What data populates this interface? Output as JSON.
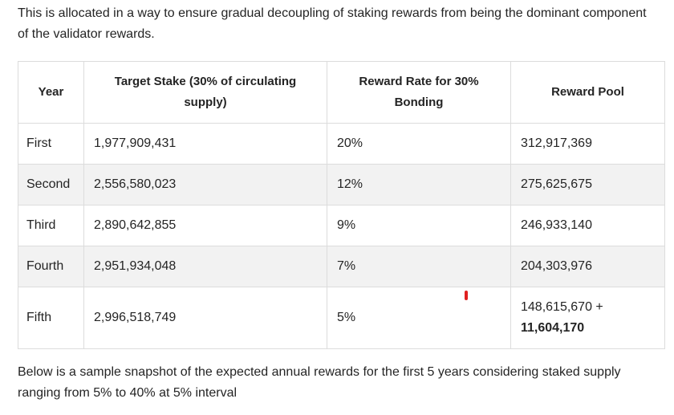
{
  "intro_text": "This is allocated in a way to ensure gradual decoupling of staking rewards from being the dominant component of the validator rewards.",
  "table": {
    "headers": {
      "year": "Year",
      "target_stake": "Target Stake (30% of circulating supply)",
      "reward_rate": "Reward Rate for 30% Bonding",
      "reward_pool": "Reward Pool"
    },
    "rows": [
      {
        "year": "First",
        "target_stake": "1,977,909,431",
        "reward_rate": "20%",
        "reward_pool": "312,917,369",
        "reward_pool_extra": ""
      },
      {
        "year": "Second",
        "target_stake": "2,556,580,023",
        "reward_rate": "12%",
        "reward_pool": "275,625,675",
        "reward_pool_extra": ""
      },
      {
        "year": "Third",
        "target_stake": "2,890,642,855",
        "reward_rate": "9%",
        "reward_pool": "246,933,140",
        "reward_pool_extra": ""
      },
      {
        "year": "Fourth",
        "target_stake": "2,951,934,048",
        "reward_rate": "7%",
        "reward_pool": "204,303,976",
        "reward_pool_extra": ""
      },
      {
        "year": "Fifth",
        "target_stake": "2,996,518,749",
        "reward_rate": "5%",
        "reward_pool": "148,615,670 +",
        "reward_pool_extra": "11,604,170"
      }
    ]
  },
  "outro_text": "Below is a sample snapshot of the expected annual rewards for the first 5 years considering staked supply ranging from 5% to 40% at 5% interval",
  "colors": {
    "text": "#242424",
    "border": "#dcdcdc",
    "alt_row": "#f2f2f2",
    "mark": "#e02020"
  }
}
